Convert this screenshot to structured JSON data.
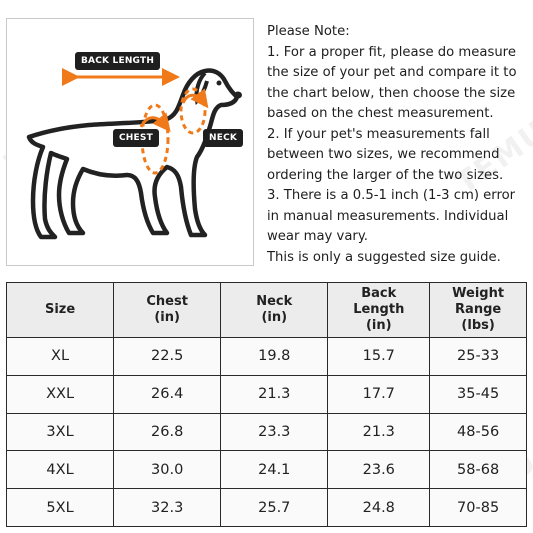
{
  "diagram": {
    "labels": {
      "back_length": "BACK LENGTH",
      "chest": "CHEST",
      "neck": "NECK"
    },
    "colors": {
      "arrow": "#f07a1a",
      "label_bg": "#1f1f1f",
      "outline": "#222222"
    }
  },
  "notes": [
    "Please Note:",
    "1. For a proper fit, please do measure the size of your pet and compare it to the chart below, then choose the size based on the chest measurement.",
    "2. If your pet's measurements fall between two sizes, we recommend ordering the larger of the two sizes.",
    "3. There is a 0.5-1 inch (1-3 cm) error in manual measurements. Individual wear may vary.",
    "This is only a suggested size guide."
  ],
  "table": {
    "headers": [
      "Size",
      "Chest\n(in)",
      "Neck\n(in)",
      "Back\nLength\n(in)",
      "Weight\nRange\n(lbs)"
    ],
    "rows": [
      [
        "XL",
        "22.5",
        "19.8",
        "15.7",
        "25-33"
      ],
      [
        "XXL",
        "26.4",
        "21.3",
        "17.7",
        "35-45"
      ],
      [
        "3XL",
        "26.8",
        "23.3",
        "21.3",
        "48-56"
      ],
      [
        "4XL",
        "30.0",
        "24.1",
        "23.6",
        "58-68"
      ],
      [
        "5XL",
        "32.3",
        "25.7",
        "24.8",
        "70-85"
      ]
    ]
  },
  "watermark": "TEMU"
}
